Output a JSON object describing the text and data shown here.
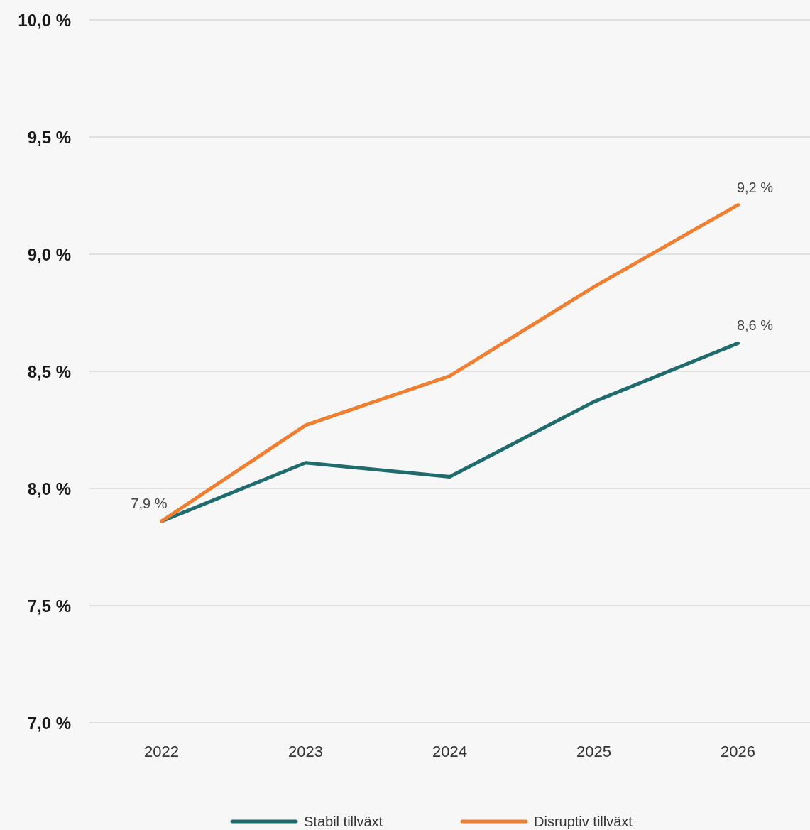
{
  "chart_data": {
    "type": "line",
    "categories": [
      "2022",
      "2023",
      "2024",
      "2025",
      "2026"
    ],
    "series": [
      {
        "name": "Stabil tillväxt",
        "color": "#1f6b6e",
        "values": [
          7.86,
          8.11,
          8.05,
          8.37,
          8.62
        ]
      },
      {
        "name": "Disruptiv tillväxt",
        "color": "#f07f32",
        "values": [
          7.86,
          8.27,
          8.48,
          8.86,
          9.21
        ]
      }
    ],
    "ylim": [
      7.0,
      10.0
    ],
    "yticks": [
      {
        "value": 7.0,
        "label": "7,0 %"
      },
      {
        "value": 7.5,
        "label": "7,5 %"
      },
      {
        "value": 8.0,
        "label": "8,0 %"
      },
      {
        "value": 8.5,
        "label": "8,5 %"
      },
      {
        "value": 9.0,
        "label": "9,0 %"
      },
      {
        "value": 9.5,
        "label": "9,5 %"
      },
      {
        "value": 10.0,
        "label": "10,0 %"
      }
    ],
    "grid": "y",
    "legend": "bottom",
    "marker": "none",
    "line_style": "solid",
    "annotations": [
      {
        "text": "7,9 %",
        "x": "2022",
        "y": 7.86
      },
      {
        "text": "9,2 %",
        "x": "2026",
        "y": 9.21
      },
      {
        "text": "8,6 %",
        "x": "2026",
        "y": 8.62
      }
    ]
  }
}
